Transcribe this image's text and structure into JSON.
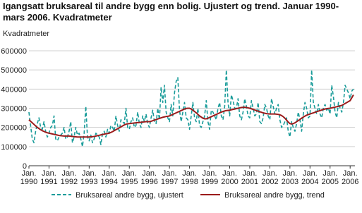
{
  "chart_data": {
    "type": "line",
    "title": [
      "Igangsatt bruksareal til andre bygg enn bolig. Ujustert og trend. Januar 1990-",
      "mars 2006. Kvadratmeter"
    ],
    "y_label": "Kvadratmeter",
    "categories": [
      "Jan. 1990",
      null,
      null,
      null,
      null,
      null,
      null,
      null,
      null,
      null,
      null,
      null,
      "Jan. 1991",
      null,
      null,
      null,
      null,
      null,
      null,
      null,
      null,
      null,
      null,
      null,
      "Jan. 1992",
      null,
      null,
      null,
      null,
      null,
      null,
      null,
      null,
      null,
      null,
      null,
      "Jan. 1993",
      null,
      null,
      null,
      null,
      null,
      null,
      null,
      null,
      null,
      null,
      null,
      "Jan. 1994",
      null,
      null,
      null,
      null,
      null,
      null,
      null,
      null,
      null,
      null,
      null,
      "Jan. 1995",
      null,
      null,
      null,
      null,
      null,
      null,
      null,
      null,
      null,
      null,
      null,
      "Jan. 1996",
      null,
      null,
      null,
      null,
      null,
      null,
      null,
      null,
      null,
      null,
      null,
      "Jan. 1997",
      null,
      null,
      null,
      null,
      null,
      null,
      null,
      null,
      null,
      null,
      null,
      "Jan. 1998",
      null,
      null,
      null,
      null,
      null,
      null,
      null,
      null,
      null,
      null,
      null,
      "Jan. 1999",
      null,
      null,
      null,
      null,
      null,
      null,
      null,
      null,
      null,
      null,
      null,
      "Jan. 2000",
      null,
      null,
      null,
      null,
      null,
      null,
      null,
      null,
      null,
      null,
      null,
      "Jan. 2001",
      null,
      null,
      null,
      null,
      null,
      null,
      null,
      null,
      null,
      null,
      null,
      "Jan. 2002",
      null,
      null,
      null,
      null,
      null,
      null,
      null,
      null,
      null,
      null,
      null,
      "Jan. 2003",
      null,
      null,
      null,
      null,
      null,
      null,
      null,
      null,
      null,
      null,
      null,
      "Jan. 2004",
      null,
      null,
      null,
      null,
      null,
      null,
      null,
      null,
      null,
      null,
      null,
      "Jan. 2005",
      null,
      null,
      null,
      null,
      null,
      null,
      null,
      null,
      null,
      null,
      null,
      "Jan. 2006",
      null,
      null
    ],
    "series": [
      {
        "name": "Bruksareal andre bygg, ujustert",
        "color": "#1a9c9a",
        "dashed": true,
        "values": [
          280000,
          210000,
          140000,
          120000,
          180000,
          220000,
          250000,
          200000,
          190000,
          230000,
          180000,
          150000,
          170000,
          200000,
          210000,
          260000,
          140000,
          130000,
          150000,
          160000,
          170000,
          200000,
          140000,
          150000,
          180000,
          230000,
          120000,
          150000,
          200000,
          160000,
          170000,
          140000,
          100000,
          170000,
          310000,
          150000,
          130000,
          160000,
          120000,
          140000,
          170000,
          160000,
          150000,
          110000,
          170000,
          180000,
          150000,
          190000,
          170000,
          210000,
          200000,
          180000,
          260000,
          210000,
          180000,
          240000,
          230000,
          220000,
          300000,
          200000,
          190000,
          230000,
          250000,
          200000,
          210000,
          280000,
          220000,
          200000,
          260000,
          230000,
          270000,
          220000,
          200000,
          250000,
          290000,
          230000,
          220000,
          300000,
          240000,
          410000,
          330000,
          420000,
          280000,
          250000,
          230000,
          320000,
          260000,
          380000,
          440000,
          460000,
          290000,
          230000,
          280000,
          330000,
          250000,
          240000,
          190000,
          260000,
          330000,
          250000,
          230000,
          300000,
          210000,
          200000,
          230000,
          260000,
          340000,
          230000,
          190000,
          290000,
          280000,
          260000,
          240000,
          300000,
          330000,
          260000,
          240000,
          310000,
          500000,
          330000,
          260000,
          370000,
          340000,
          300000,
          300000,
          350000,
          260000,
          240000,
          280000,
          350000,
          310000,
          260000,
          250000,
          340000,
          300000,
          260000,
          270000,
          330000,
          230000,
          220000,
          250000,
          320000,
          300000,
          260000,
          240000,
          350000,
          310000,
          270000,
          300000,
          320000,
          240000,
          200000,
          210000,
          230000,
          250000,
          180000,
          150000,
          230000,
          200000,
          180000,
          220000,
          280000,
          240000,
          180000,
          270000,
          330000,
          300000,
          250000,
          260000,
          500000,
          330000,
          300000,
          270000,
          320000,
          270000,
          250000,
          300000,
          320000,
          290000,
          300000,
          270000,
          420000,
          360000,
          280000,
          250000,
          330000,
          300000,
          280000,
          330000,
          420000,
          400000,
          380000,
          350000,
          390000,
          400000
        ]
      },
      {
        "name": "Bruksareal andre bygg, trend",
        "color": "#9b1b1b",
        "dashed": false,
        "values": [
          240000,
          232000,
          224000,
          216000,
          208000,
          200000,
          194000,
          188000,
          183000,
          179000,
          175000,
          172000,
          170000,
          168000,
          166000,
          164000,
          162000,
          160000,
          158000,
          157000,
          156000,
          155000,
          155000,
          155000,
          155000,
          154000,
          153000,
          152000,
          151000,
          150000,
          150000,
          150000,
          150000,
          150000,
          150000,
          150000,
          150000,
          151000,
          152000,
          153000,
          155000,
          157000,
          159000,
          161000,
          163000,
          165000,
          167000,
          168000,
          170000,
          174000,
          178000,
          183000,
          188000,
          193000,
          198000,
          203000,
          208000,
          213000,
          217000,
          219000,
          220000,
          221000,
          222000,
          223000,
          224000,
          225000,
          226000,
          227000,
          228000,
          229000,
          230000,
          230000,
          230000,
          232000,
          235000,
          238000,
          241000,
          244000,
          247000,
          250000,
          253000,
          255000,
          257000,
          258000,
          260000,
          264000,
          268000,
          272000,
          276000,
          280000,
          284000,
          288000,
          292000,
          296000,
          299000,
          300000,
          300000,
          296000,
          290000,
          283000,
          276000,
          268000,
          260000,
          254000,
          248000,
          245000,
          245000,
          248000,
          252000,
          256000,
          260000,
          264000,
          268000,
          272000,
          276000,
          280000,
          283000,
          286000,
          288000,
          289000,
          290000,
          292000,
          294000,
          296000,
          298000,
          300000,
          302000,
          304000,
          305000,
          305000,
          304000,
          302000,
          300000,
          297000,
          294000,
          291000,
          288000,
          285000,
          282000,
          279000,
          276000,
          274000,
          272000,
          271000,
          270000,
          270000,
          270000,
          270000,
          269000,
          268000,
          266000,
          262000,
          256000,
          248000,
          238000,
          228000,
          220000,
          218000,
          220000,
          224000,
          230000,
          236000,
          242000,
          248000,
          254000,
          259000,
          264000,
          267000,
          270000,
          273000,
          276000,
          279000,
          282000,
          285000,
          288000,
          291000,
          294000,
          296000,
          298000,
          299000,
          300000,
          302000,
          304000,
          306000,
          308000,
          310000,
          312000,
          315000,
          320000,
          325000,
          330000,
          335000,
          340000,
          355000,
          370000
        ]
      }
    ],
    "ylim": [
      0,
      600000
    ],
    "yticks": [
      0,
      100000,
      200000,
      300000,
      400000,
      500000,
      600000
    ],
    "grid": true,
    "legend": "bottom"
  }
}
